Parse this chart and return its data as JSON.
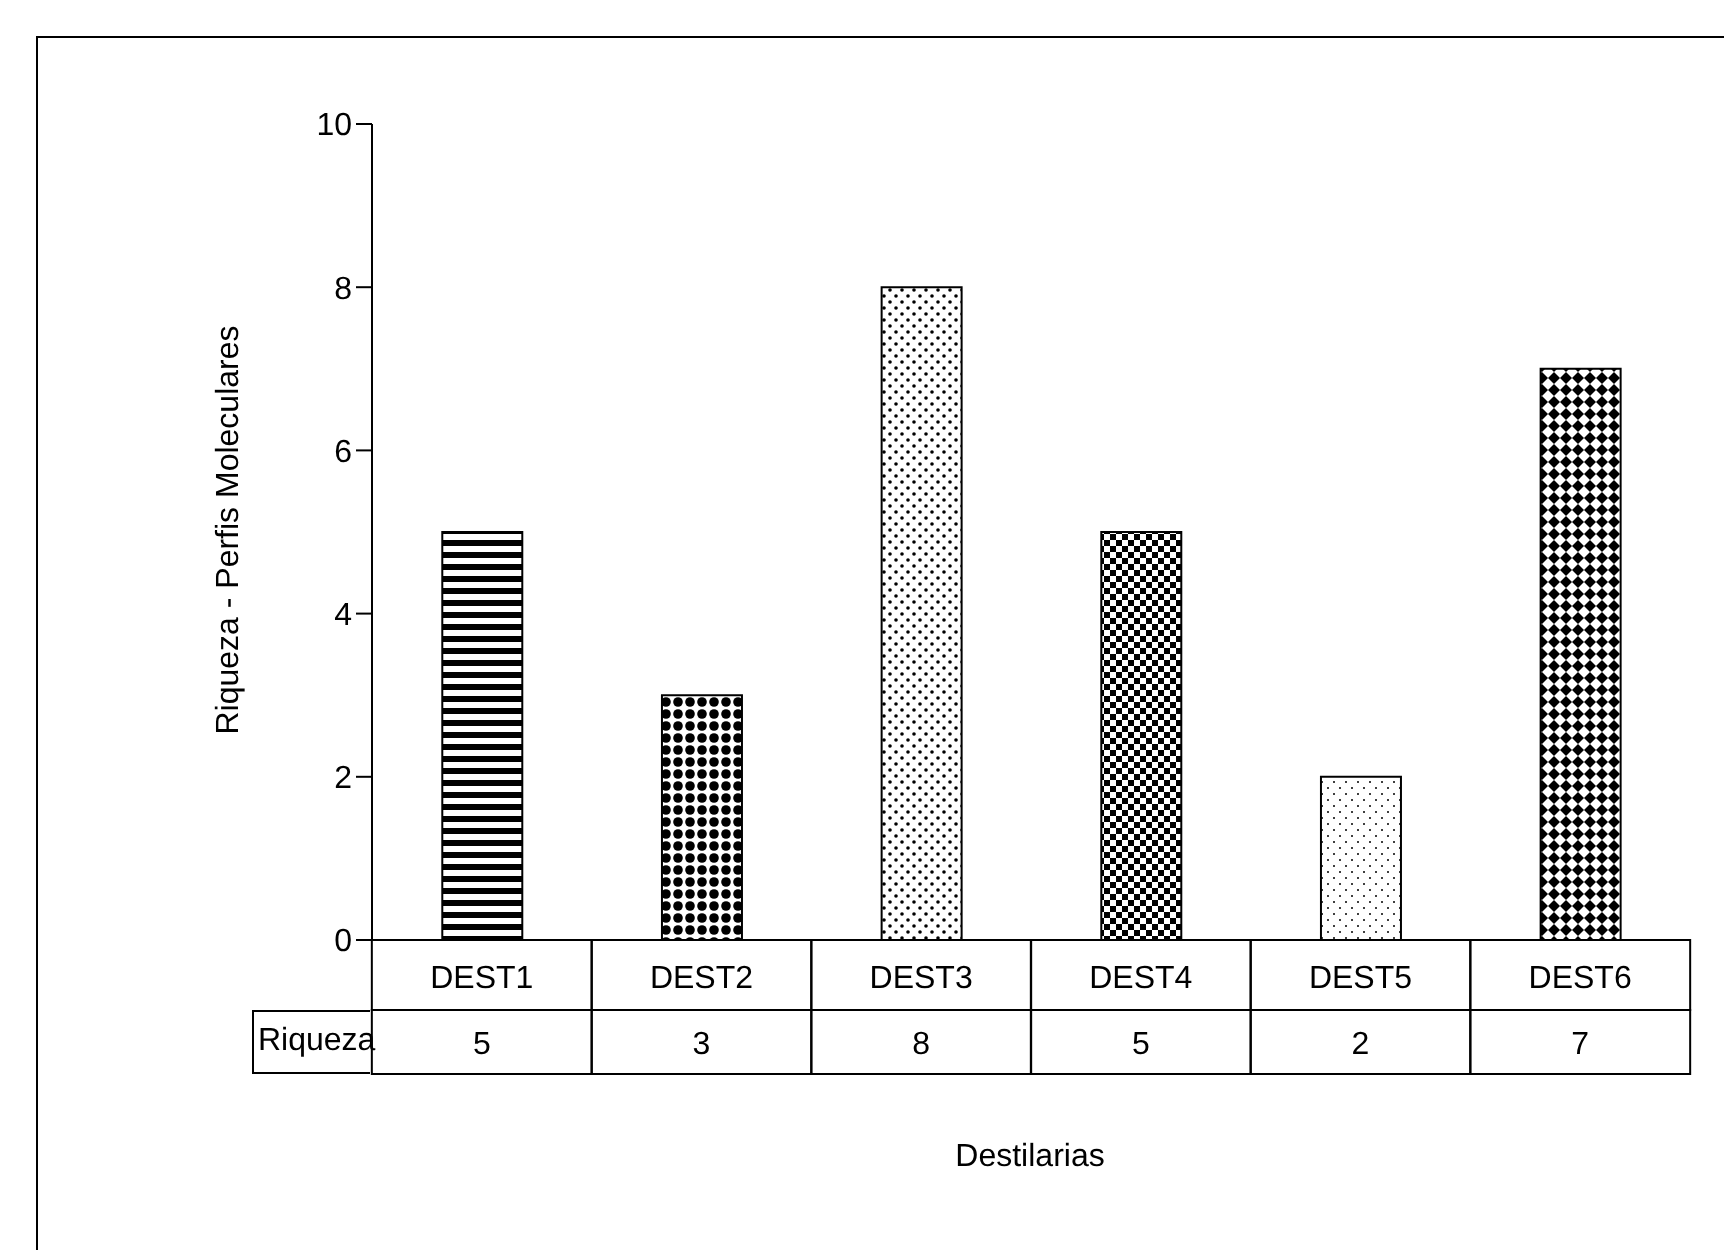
{
  "chart_data": {
    "type": "bar",
    "xlabel": "Destilarias",
    "ylabel": "Riqueza - Perfis Moleculares",
    "categories": [
      "DEST1",
      "DEST2",
      "DEST3",
      "DEST4",
      "DEST5",
      "DEST6"
    ],
    "series": [
      {
        "name": "Riqueza",
        "colors": [
          "#000000",
          "#000000",
          "#000000",
          "#000000",
          "#000000",
          "#000000"
        ],
        "values": [
          5,
          3,
          8,
          5,
          2,
          7
        ]
      }
    ],
    "ylim": [
      0,
      10
    ],
    "yticks": [
      0,
      2,
      4,
      6,
      8,
      10
    ],
    "data_labels": true
  }
}
